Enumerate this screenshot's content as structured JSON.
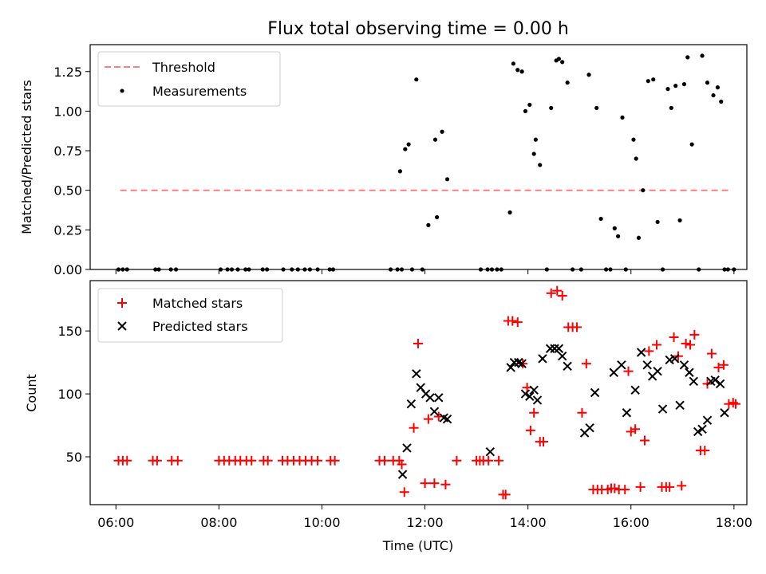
{
  "chart_data": [
    {
      "type": "scatter",
      "title": "Flux total observing time = 0.00 h",
      "xlabel": "",
      "ylabel": "Matched/Predicted stars",
      "xlim": [
        "05:30",
        "18:15"
      ],
      "ylim": [
        0,
        1.42
      ],
      "yticks": [
        0.0,
        0.25,
        0.5,
        0.75,
        1.0,
        1.25
      ],
      "ytick_labels": [
        "0.00",
        "0.25",
        "0.50",
        "0.75",
        "1.00",
        "1.25"
      ],
      "grid": false,
      "legend": "top-left",
      "series": [
        {
          "name": "Threshold",
          "kind": "line",
          "style": "dashed",
          "color": "#ff7f7f",
          "x": [
            "06:05",
            "17:55"
          ],
          "y": [
            0.5,
            0.5
          ]
        },
        {
          "name": "Measurements",
          "kind": "points",
          "color": "#000000",
          "x": [
            "06:03",
            "06:08",
            "06:13",
            "06:46",
            "06:50",
            "07:04",
            "07:10",
            "08:02",
            "08:10",
            "08:15",
            "08:22",
            "08:31",
            "08:35",
            "08:51",
            "08:56",
            "09:15",
            "09:25",
            "09:32",
            "09:40",
            "09:46",
            "09:55",
            "10:09",
            "10:13",
            "11:20",
            "11:28",
            "11:33",
            "11:45",
            "11:57",
            "11:31",
            "11:37",
            "11:41",
            "11:50",
            "12:04",
            "12:12",
            "12:14",
            "12:20",
            "12:26",
            "13:05",
            "13:13",
            "13:18",
            "13:24",
            "13:29",
            "13:39",
            "13:43",
            "13:48",
            "13:53",
            "13:57",
            "14:02",
            "14:07",
            "14:09",
            "14:14",
            "14:22",
            "14:27",
            "14:33",
            "14:36",
            "14:40",
            "14:46",
            "14:52",
            "15:02",
            "15:11",
            "15:20",
            "15:25",
            "15:31",
            "15:36",
            "15:41",
            "15:45",
            "15:50",
            "15:54",
            "16:03",
            "16:06",
            "16:09",
            "16:14",
            "16:20",
            "16:26",
            "16:31",
            "16:37",
            "16:43",
            "16:47",
            "16:52",
            "16:57",
            "17:02",
            "17:06",
            "17:11",
            "17:19",
            "17:23",
            "17:29",
            "17:36",
            "17:41",
            "17:45",
            "17:49",
            "17:53",
            "18:00"
          ],
          "y": [
            0,
            0,
            0,
            0,
            0,
            0,
            0,
            0,
            0,
            0,
            0,
            0,
            0,
            0,
            0,
            0,
            0,
            0,
            0,
            0,
            0,
            0,
            0,
            0,
            0,
            0,
            0,
            0,
            0.62,
            0.76,
            0.79,
            1.2,
            0.28,
            0.82,
            0.33,
            0.87,
            0.57,
            0,
            0,
            0,
            0,
            0,
            0.36,
            1.3,
            1.26,
            1.25,
            1.0,
            1.04,
            0.73,
            0.82,
            0.66,
            0,
            1.02,
            1.32,
            1.33,
            1.31,
            1.18,
            0,
            0,
            1.23,
            1.02,
            0.32,
            0,
            0,
            0.26,
            0.21,
            0.96,
            0,
            0.82,
            0.7,
            0.2,
            0.5,
            1.19,
            1.2,
            0.3,
            0,
            1.14,
            1.02,
            1.16,
            0.31,
            1.17,
            1.34,
            0.79,
            0,
            1.35,
            1.18,
            1.1,
            1.15,
            1.06,
            0,
            0,
            0
          ]
        }
      ]
    },
    {
      "type": "scatter",
      "title": "",
      "xlabel": "Time (UTC)",
      "ylabel": "Count",
      "xlim": [
        "05:30",
        "18:15"
      ],
      "xticks": [
        "06:00",
        "08:00",
        "10:00",
        "12:00",
        "14:00",
        "16:00",
        "18:00"
      ],
      "ylim": [
        12,
        190
      ],
      "yticks": [
        50,
        100,
        150
      ],
      "grid": false,
      "legend": "top-left",
      "series": [
        {
          "name": "Matched stars",
          "marker": "+",
          "color": "#ff0000",
          "x": [
            "06:03",
            "06:08",
            "06:13",
            "06:43",
            "06:48",
            "07:05",
            "07:12",
            "08:00",
            "08:06",
            "08:12",
            "08:19",
            "08:25",
            "08:32",
            "08:38",
            "08:52",
            "08:57",
            "09:14",
            "09:20",
            "09:27",
            "09:34",
            "09:41",
            "09:48",
            "09:55",
            "10:10",
            "10:15",
            "11:07",
            "11:13",
            "11:23",
            "11:30",
            "11:33",
            "11:36",
            "11:47",
            "11:52",
            "12:00",
            "12:04",
            "12:11",
            "12:16",
            "12:24",
            "12:37",
            "13:00",
            "13:04",
            "13:08",
            "13:14",
            "13:26",
            "13:31",
            "13:34",
            "13:37",
            "13:42",
            "13:48",
            "13:54",
            "13:59",
            "14:03",
            "14:07",
            "14:14",
            "14:18",
            "14:27",
            "14:34",
            "14:40",
            "14:47",
            "14:52",
            "14:57",
            "15:03",
            "15:08",
            "15:16",
            "15:21",
            "15:26",
            "15:33",
            "15:37",
            "15:41",
            "15:46",
            "15:53",
            "15:57",
            "16:00",
            "16:05",
            "16:11",
            "16:16",
            "16:21",
            "16:30",
            "16:36",
            "16:41",
            "16:45",
            "16:50",
            "16:55",
            "16:59",
            "17:04",
            "17:09",
            "17:14",
            "17:21",
            "17:26",
            "17:29",
            "17:34",
            "17:42",
            "17:48",
            "17:54",
            "17:59",
            "18:02"
          ],
          "y": [
            47,
            47,
            47,
            47,
            47,
            47,
            47,
            47,
            47,
            47,
            47,
            47,
            47,
            47,
            47,
            47,
            47,
            47,
            47,
            47,
            47,
            47,
            47,
            47,
            47,
            47,
            47,
            47,
            47,
            44,
            22,
            73,
            140,
            29,
            80,
            29,
            82,
            28,
            47,
            47,
            47,
            47,
            47,
            47,
            20,
            20,
            158,
            158,
            157,
            124,
            105,
            71,
            85,
            62,
            62,
            180,
            182,
            178,
            153,
            153,
            153,
            85,
            124,
            24,
            24,
            24,
            24,
            25,
            25,
            24,
            24,
            118,
            70,
            72,
            26,
            63,
            134,
            139,
            26,
            26,
            26,
            145,
            130,
            27,
            140,
            139,
            147,
            55,
            55,
            108,
            132,
            121,
            123,
            92,
            93,
            92
          ]
        },
        {
          "name": "Predicted stars",
          "marker": "x",
          "color": "#000000",
          "x": [
            "11:34",
            "11:39",
            "11:44",
            "11:50",
            "11:55",
            "12:01",
            "12:06",
            "12:11",
            "12:16",
            "12:22",
            "12:26",
            "13:16",
            "13:40",
            "13:44",
            "13:49",
            "13:53",
            "13:57",
            "14:02",
            "14:07",
            "14:11",
            "14:17",
            "14:26",
            "14:31",
            "14:36",
            "14:40",
            "14:46",
            "15:06",
            "15:12",
            "15:18",
            "15:40",
            "15:49",
            "15:55",
            "16:05",
            "16:12",
            "16:19",
            "16:25",
            "16:31",
            "16:37",
            "16:45",
            "16:51",
            "16:57",
            "17:02",
            "17:08",
            "17:13",
            "17:18",
            "17:23",
            "17:29",
            "17:33",
            "17:38",
            "17:44",
            "17:49"
          ],
          "y": [
            36,
            57,
            92,
            116,
            105,
            100,
            97,
            86,
            97,
            81,
            80,
            54,
            121,
            125,
            125,
            124,
            100,
            98,
            103,
            95,
            128,
            136,
            136,
            136,
            130,
            122,
            69,
            73,
            101,
            117,
            123,
            85,
            103,
            133,
            123,
            114,
            118,
            88,
            127,
            128,
            91,
            123,
            117,
            110,
            70,
            72,
            79,
            110,
            111,
            108,
            85
          ]
        }
      ]
    }
  ]
}
